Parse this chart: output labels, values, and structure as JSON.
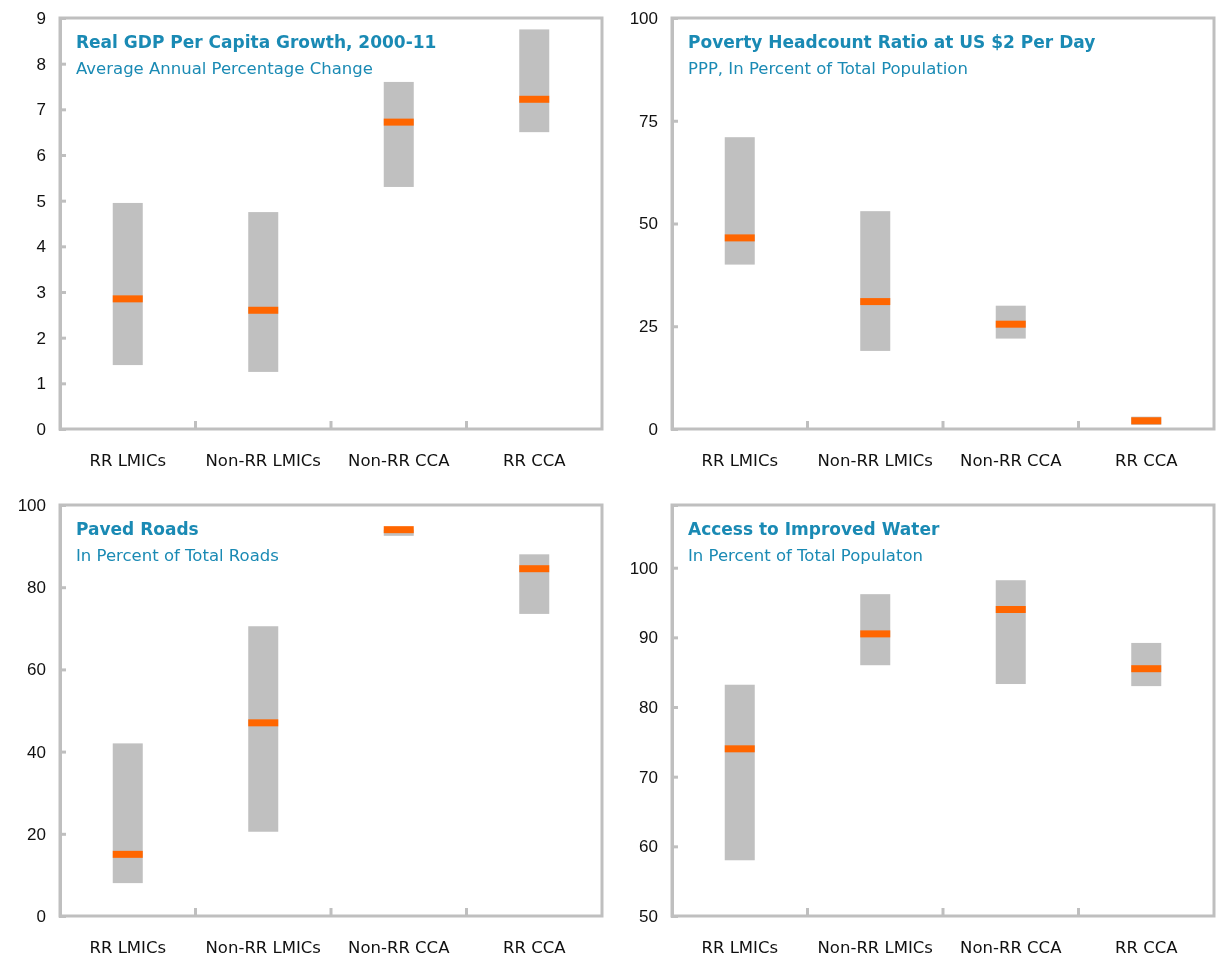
{
  "chart_data": [
    {
      "type": "box",
      "title": "Real GDP Per Capita Growth, 2000-11",
      "subtitle": "Average Annual Percentage Change",
      "categories": [
        "RR LMICs",
        "Non-RR LMICs",
        "Non-RR CCA",
        "RR CCA"
      ],
      "ylim": [
        0,
        9
      ],
      "yticks": [
        0,
        1,
        2,
        3,
        4,
        5,
        6,
        7,
        8,
        9
      ],
      "grid": false,
      "legend": false,
      "series": [
        {
          "color": "#c0c0c0",
          "boxes": [
            {
              "low": 1.4,
              "q1": 1.4,
              "median": 2.85,
              "q3": 4.95,
              "high": 4.95
            },
            {
              "low": 1.25,
              "q1": 1.25,
              "median": 2.6,
              "q3": 4.75,
              "high": 4.75
            },
            {
              "low": 5.3,
              "q1": 5.3,
              "median": 6.72,
              "q3": 7.6,
              "high": 7.6
            },
            {
              "low": 6.5,
              "q1": 6.5,
              "median": 7.22,
              "q3": 8.75,
              "high": 8.75
            }
          ]
        }
      ]
    },
    {
      "type": "box",
      "title": "Poverty Headcount Ratio at US $2 Per Day",
      "subtitle": "PPP, In Percent of Total Population",
      "categories": [
        "RR LMICs",
        "Non-RR LMICs",
        "Non-RR CCA",
        "RR CCA"
      ],
      "ylim": [
        0,
        100
      ],
      "yticks": [
        0,
        25,
        50,
        75,
        100
      ],
      "grid": false,
      "legend": false,
      "series": [
        {
          "color": "#c0c0c0",
          "boxes": [
            {
              "low": 40,
              "q1": 40,
              "median": 46.5,
              "q3": 71,
              "high": 71
            },
            {
              "low": 19,
              "q1": 19,
              "median": 31,
              "q3": 53,
              "high": 53
            },
            {
              "low": 22,
              "q1": 22,
              "median": 25.5,
              "q3": 30,
              "high": 30
            },
            {
              "low": 1,
              "q1": 1,
              "median": 2,
              "q3": 3,
              "high": 3
            }
          ]
        }
      ]
    },
    {
      "type": "box",
      "title": "Paved Roads",
      "subtitle": "In Percent of Total Roads",
      "categories": [
        "RR LMICs",
        "Non-RR LMICs",
        "Non-RR CCA",
        "RR CCA"
      ],
      "ylim": [
        0,
        100
      ],
      "yticks": [
        0,
        20,
        40,
        60,
        80,
        100
      ],
      "grid": false,
      "legend": false,
      "series": [
        {
          "color": "#c0c0c0",
          "boxes": [
            {
              "low": 8,
              "q1": 8,
              "median": 15,
              "q3": 42,
              "high": 42
            },
            {
              "low": 20.5,
              "q1": 20.5,
              "median": 47,
              "q3": 70.5,
              "high": 70.5
            },
            {
              "low": 92.5,
              "q1": 92.5,
              "median": 94,
              "q3": 94,
              "high": 94
            },
            {
              "low": 73.5,
              "q1": 73.5,
              "median": 84.5,
              "q3": 88,
              "high": 88
            }
          ]
        }
      ]
    },
    {
      "type": "box",
      "title": "Access to Improved Water",
      "subtitle": "In Percent of Total Populaton",
      "categories": [
        "RR LMICs",
        "Non-RR LMICs",
        "Non-RR CCA",
        "RR CCA"
      ],
      "ylim": [
        50,
        109
      ],
      "yticks": [
        50,
        60,
        70,
        80,
        90,
        100
      ],
      "grid": false,
      "legend": false,
      "series": [
        {
          "color": "#c0c0c0",
          "boxes": [
            {
              "low": 58,
              "q1": 58,
              "median": 74,
              "q3": 83.2,
              "high": 83.2
            },
            {
              "low": 86,
              "q1": 86,
              "median": 90.5,
              "q3": 96.2,
              "high": 96.2
            },
            {
              "low": 83.3,
              "q1": 83.3,
              "median": 94,
              "q3": 98.2,
              "high": 98.2
            },
            {
              "low": 83,
              "q1": 83,
              "median": 85.5,
              "q3": 89.2,
              "high": 89.2
            }
          ]
        }
      ]
    }
  ]
}
